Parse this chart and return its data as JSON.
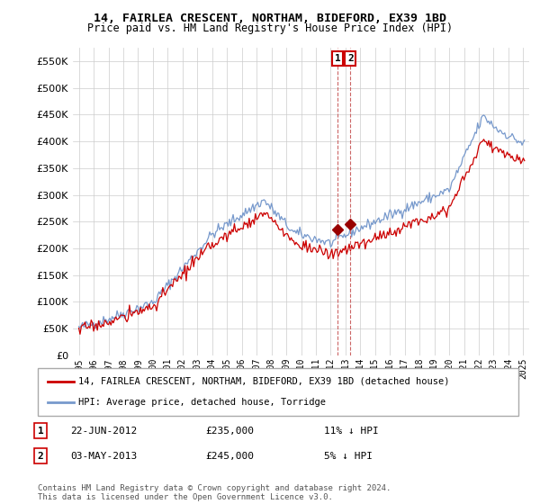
{
  "title": "14, FAIRLEA CRESCENT, NORTHAM, BIDEFORD, EX39 1BD",
  "subtitle": "Price paid vs. HM Land Registry's House Price Index (HPI)",
  "ylim": [
    0,
    575000
  ],
  "yticks": [
    0,
    50000,
    100000,
    150000,
    200000,
    250000,
    300000,
    350000,
    400000,
    450000,
    500000,
    550000
  ],
  "hpi_color": "#7799cc",
  "price_color": "#cc0000",
  "vline_color": "#cc6666",
  "marker_color": "#990000",
  "background_color": "#ffffff",
  "grid_color": "#cccccc",
  "legend_label_price": "14, FAIRLEA CRESCENT, NORTHAM, BIDEFORD, EX39 1BD (detached house)",
  "legend_label_hpi": "HPI: Average price, detached house, Torridge",
  "transaction1_label": "1",
  "transaction1_date": "22-JUN-2012",
  "transaction1_price": "£235,000",
  "transaction1_hpi": "11% ↓ HPI",
  "transaction2_label": "2",
  "transaction2_date": "03-MAY-2013",
  "transaction2_price": "£245,000",
  "transaction2_hpi": "5% ↓ HPI",
  "footer": "Contains HM Land Registry data © Crown copyright and database right 2024.\nThis data is licensed under the Open Government Licence v3.0.",
  "vline1_x": 2012.47,
  "vline2_x": 2013.33,
  "marker1_x": 2012.47,
  "marker1_y": 235000,
  "marker2_x": 2013.33,
  "marker2_y": 245000,
  "xlim_left": 1994.6,
  "xlim_right": 2025.4
}
